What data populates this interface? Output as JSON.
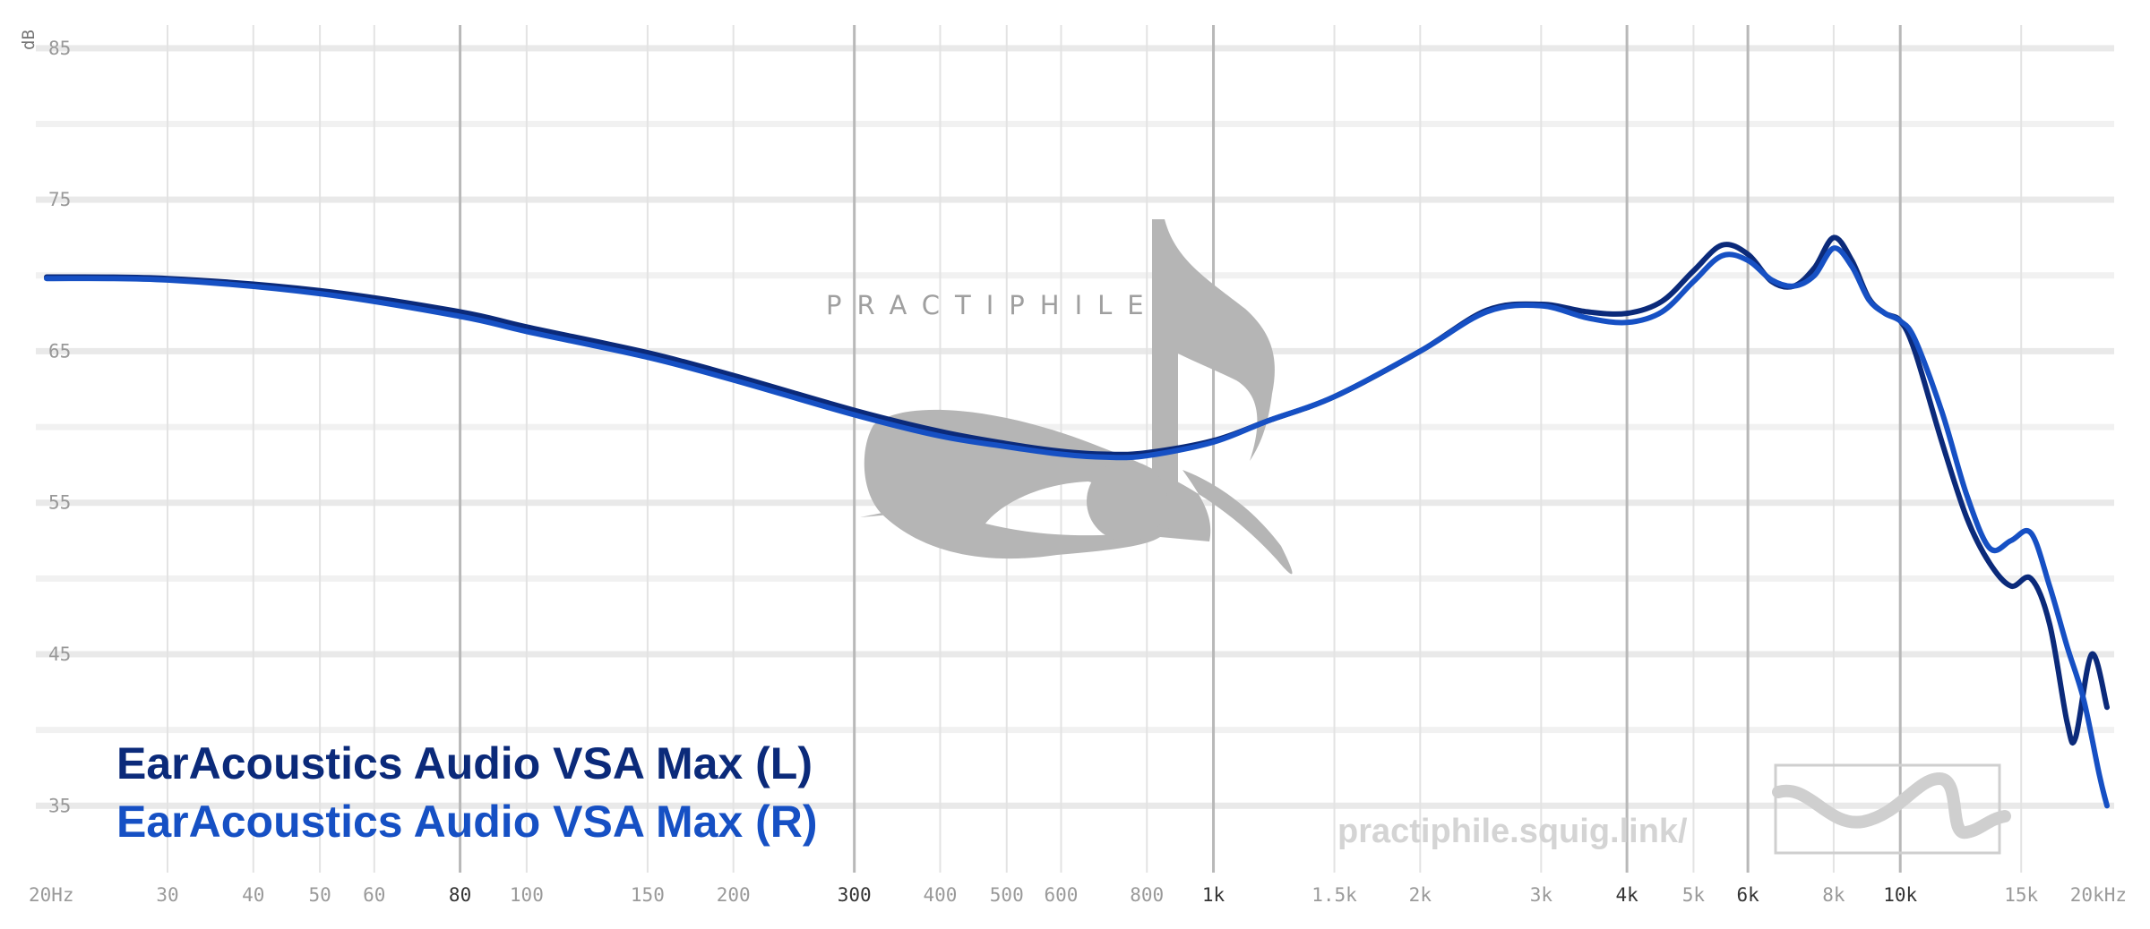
{
  "chart_data": {
    "type": "line",
    "y_unit": "dB",
    "x_scale": "log",
    "xlim": [
      20,
      20000
    ],
    "ylim": [
      31,
      87
    ],
    "y_ticks": [
      "85",
      "75",
      "65",
      "55",
      "45",
      "35"
    ],
    "x_ticks": [
      {
        "value": 20,
        "label": "20Hz",
        "major": false
      },
      {
        "value": 30,
        "label": "30",
        "major": false
      },
      {
        "value": 40,
        "label": "40",
        "major": false
      },
      {
        "value": 50,
        "label": "50",
        "major": false
      },
      {
        "value": 60,
        "label": "60",
        "major": false
      },
      {
        "value": 80,
        "label": "80",
        "major": true
      },
      {
        "value": 100,
        "label": "100",
        "major": false
      },
      {
        "value": 150,
        "label": "150",
        "major": false
      },
      {
        "value": 200,
        "label": "200",
        "major": false
      },
      {
        "value": 300,
        "label": "300",
        "major": true
      },
      {
        "value": 400,
        "label": "400",
        "major": false
      },
      {
        "value": 500,
        "label": "500",
        "major": false
      },
      {
        "value": 600,
        "label": "600",
        "major": false
      },
      {
        "value": 800,
        "label": "800",
        "major": false
      },
      {
        "value": 1000,
        "label": "1k",
        "major": true
      },
      {
        "value": 1500,
        "label": "1.5k",
        "major": false
      },
      {
        "value": 2000,
        "label": "2k",
        "major": false
      },
      {
        "value": 3000,
        "label": "3k",
        "major": false
      },
      {
        "value": 4000,
        "label": "4k",
        "major": true
      },
      {
        "value": 5000,
        "label": "5k",
        "major": false
      },
      {
        "value": 6000,
        "label": "6k",
        "major": true
      },
      {
        "value": 8000,
        "label": "8k",
        "major": false
      },
      {
        "value": 10000,
        "label": "10k",
        "major": true
      },
      {
        "value": 15000,
        "label": "15k",
        "major": false
      },
      {
        "value": 20000,
        "label": "20kHz",
        "major": false
      }
    ],
    "grid": true,
    "series": [
      {
        "name": "EarAcoustics Audio VSA Max (L)",
        "color": "#0b2a7a",
        "points": [
          [
            20,
            69.9
          ],
          [
            30,
            69.8
          ],
          [
            50,
            69.0
          ],
          [
            80,
            67.6
          ],
          [
            100,
            66.6
          ],
          [
            150,
            64.9
          ],
          [
            200,
            63.4
          ],
          [
            300,
            61.1
          ],
          [
            400,
            59.7
          ],
          [
            500,
            58.9
          ],
          [
            600,
            58.4
          ],
          [
            700,
            58.2
          ],
          [
            800,
            58.3
          ],
          [
            1000,
            59.1
          ],
          [
            1200,
            60.4
          ],
          [
            1500,
            62.0
          ],
          [
            2000,
            65.0
          ],
          [
            2500,
            67.7
          ],
          [
            3000,
            68.1
          ],
          [
            3500,
            67.6
          ],
          [
            4000,
            67.5
          ],
          [
            4500,
            68.3
          ],
          [
            5000,
            70.3
          ],
          [
            5500,
            72.0
          ],
          [
            6000,
            71.4
          ],
          [
            6500,
            69.6
          ],
          [
            7000,
            69.3
          ],
          [
            7500,
            70.5
          ],
          [
            8000,
            72.5
          ],
          [
            8500,
            71.0
          ],
          [
            9000,
            68.5
          ],
          [
            9500,
            67.5
          ],
          [
            10000,
            67.0
          ],
          [
            10500,
            65.0
          ],
          [
            11500,
            59.0
          ],
          [
            12500,
            54.0
          ],
          [
            13500,
            51.0
          ],
          [
            14500,
            49.5
          ],
          [
            15500,
            50.0
          ],
          [
            16500,
            47.0
          ],
          [
            17500,
            40.5
          ],
          [
            18000,
            39.5
          ],
          [
            19000,
            45.0
          ],
          [
            20000,
            41.5
          ]
        ]
      },
      {
        "name": "EarAcoustics Audio VSA Max (R)",
        "color": "#1650c4",
        "points": [
          [
            20,
            69.8
          ],
          [
            30,
            69.7
          ],
          [
            50,
            68.8
          ],
          [
            80,
            67.3
          ],
          [
            100,
            66.3
          ],
          [
            150,
            64.6
          ],
          [
            200,
            63.1
          ],
          [
            300,
            60.8
          ],
          [
            400,
            59.4
          ],
          [
            500,
            58.7
          ],
          [
            600,
            58.2
          ],
          [
            700,
            58.0
          ],
          [
            800,
            58.1
          ],
          [
            1000,
            59.0
          ],
          [
            1200,
            60.4
          ],
          [
            1500,
            62.0
          ],
          [
            2000,
            65.0
          ],
          [
            2500,
            67.6
          ],
          [
            3000,
            68.0
          ],
          [
            3500,
            67.2
          ],
          [
            4000,
            66.9
          ],
          [
            4500,
            67.6
          ],
          [
            5000,
            69.6
          ],
          [
            5500,
            71.3
          ],
          [
            6000,
            71.0
          ],
          [
            6500,
            69.7
          ],
          [
            7000,
            69.3
          ],
          [
            7500,
            70.0
          ],
          [
            8000,
            71.8
          ],
          [
            8500,
            70.6
          ],
          [
            9000,
            68.4
          ],
          [
            9500,
            67.5
          ],
          [
            10000,
            67.0
          ],
          [
            10500,
            65.8
          ],
          [
            11500,
            61.0
          ],
          [
            12500,
            55.5
          ],
          [
            13500,
            52.0
          ],
          [
            14500,
            52.5
          ],
          [
            15500,
            53.0
          ],
          [
            16500,
            49.5
          ],
          [
            17500,
            45.5
          ],
          [
            18500,
            42.0
          ],
          [
            19500,
            37.0
          ],
          [
            20000,
            35.0
          ]
        ]
      }
    ]
  },
  "watermark": {
    "brand_text": "PRACTIPHILE",
    "url_text": "practiphile.squig.link/"
  }
}
